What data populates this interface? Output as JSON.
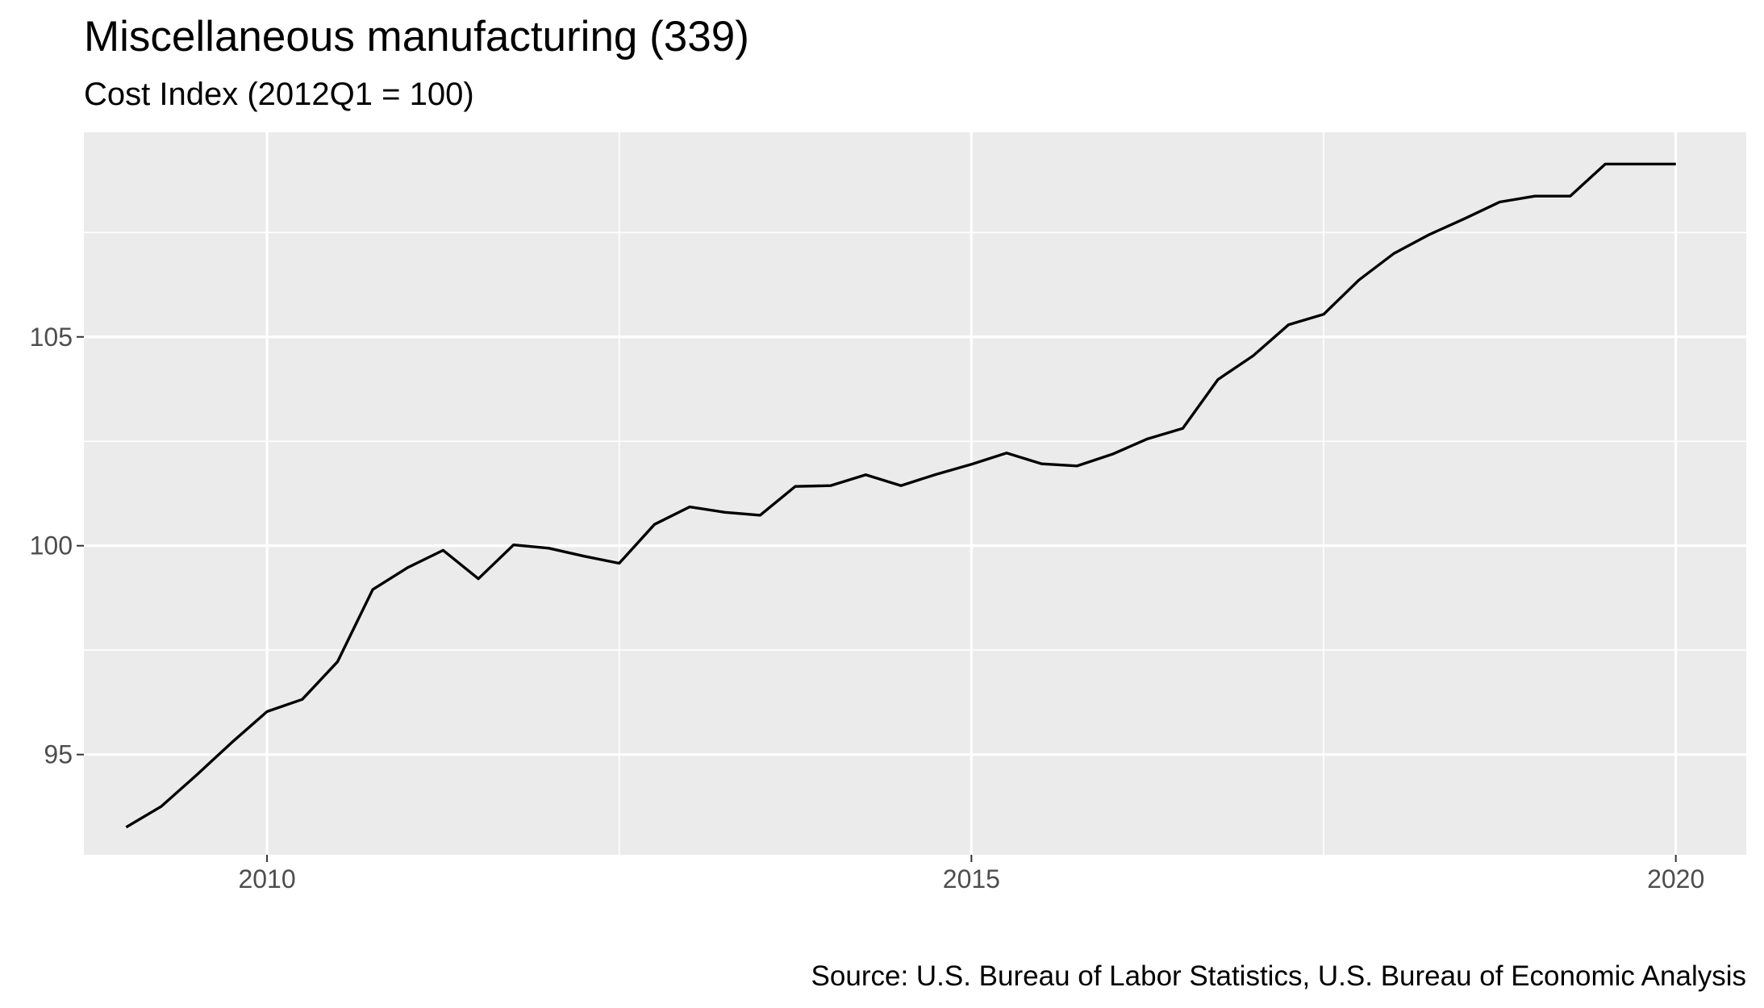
{
  "chart_data": {
    "type": "line",
    "title": "Miscellaneous manufacturing (339)",
    "subtitle": "Cost Index (2012Q1 = 100)",
    "caption": "Source: U.S. Bureau of Labor Statistics, U.S. Bureau of Economic Analysis",
    "xlabel": "",
    "ylabel": "",
    "x_ticks": [
      2010,
      2015,
      2020
    ],
    "x_tick_labels": [
      "2010",
      "2015",
      "2020"
    ],
    "y_ticks": [
      95,
      100,
      105
    ],
    "y_tick_labels": [
      "95",
      "100",
      "105"
    ],
    "xlim": [
      2008.7,
      2020.5
    ],
    "ylim": [
      92.6,
      109.9
    ],
    "grid": true,
    "legend": "none",
    "series": [
      {
        "x": [
          2009.0,
          2009.25,
          2009.5,
          2009.75,
          2010.0,
          2010.25,
          2010.5,
          2010.75,
          2011.0,
          2011.25,
          2011.5,
          2011.75,
          2012.0,
          2012.25,
          2012.5,
          2012.75,
          2013.0,
          2013.25,
          2013.5,
          2013.75,
          2014.0,
          2014.25,
          2014.5,
          2014.75,
          2015.0,
          2015.25,
          2015.5,
          2015.75,
          2016.0,
          2016.25,
          2016.5,
          2016.75,
          2017.0,
          2017.25,
          2017.5,
          2017.75,
          2018.0,
          2018.25,
          2018.5,
          2018.75,
          2019.0,
          2019.25,
          2019.5,
          2019.75,
          2020.0
        ],
        "values": [
          93.26,
          93.76,
          94.51,
          95.29,
          96.03,
          96.32,
          97.22,
          98.95,
          99.48,
          99.89,
          99.21,
          100.02,
          99.94,
          99.75,
          99.58,
          100.51,
          100.93,
          100.8,
          100.73,
          101.42,
          101.44,
          101.7,
          101.44,
          101.71,
          101.95,
          102.22,
          101.96,
          101.91,
          102.19,
          102.56,
          102.81,
          103.98,
          104.55,
          105.29,
          105.54,
          106.36,
          107.0,
          107.45,
          107.83,
          108.23,
          108.37,
          108.37,
          109.14,
          109.14,
          109.14
        ]
      }
    ],
    "colors": {
      "panel": "#ebebeb",
      "grid": "#ffffff",
      "line": "#000000",
      "tick_text": "#4d4d4d",
      "tick_mark": "#333333"
    }
  }
}
